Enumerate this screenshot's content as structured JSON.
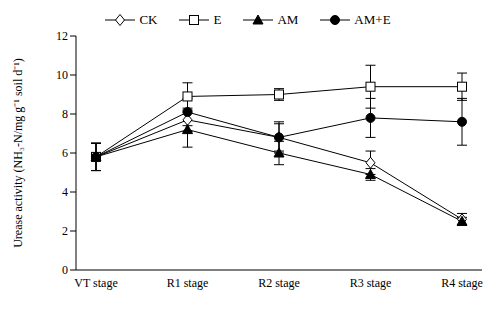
{
  "chart_data": {
    "type": "line",
    "y_label": "Urease activity (NH₃-N/mg g⁻¹ soil d⁻¹)",
    "categories": [
      "VT stage",
      "R1 stage",
      "R2 stage",
      "R3 stage",
      "R4 stage"
    ],
    "series": [
      {
        "name": "CK",
        "color": "#000000",
        "marker": "diamond_open",
        "values": [
          5.8,
          7.7,
          6.8,
          5.5,
          2.6
        ],
        "errors": [
          0.7,
          0.6,
          0.8,
          0.6,
          0.3
        ]
      },
      {
        "name": "E",
        "color": "#000000",
        "marker": "square_open",
        "values": [
          5.8,
          8.9,
          9.0,
          9.4,
          9.4
        ],
        "errors": [
          0.7,
          0.7,
          0.3,
          1.1,
          0.7
        ]
      },
      {
        "name": "AM",
        "color": "#000000",
        "marker": "triangle",
        "values": [
          5.8,
          7.2,
          6.0,
          4.9,
          2.5
        ],
        "errors": [
          0.7,
          0.9,
          0.6,
          0.3,
          0.2
        ]
      },
      {
        "name": "AM+E",
        "color": "#000000",
        "marker": "circle",
        "values": [
          5.8,
          8.1,
          6.8,
          7.8,
          7.6
        ],
        "errors": [
          0.7,
          0.7,
          0.7,
          1.0,
          1.2
        ]
      }
    ],
    "ylim": [
      0,
      12
    ],
    "yticks": [
      0,
      2,
      4,
      6,
      8,
      10,
      12
    ],
    "legend": "top",
    "grid": false
  }
}
